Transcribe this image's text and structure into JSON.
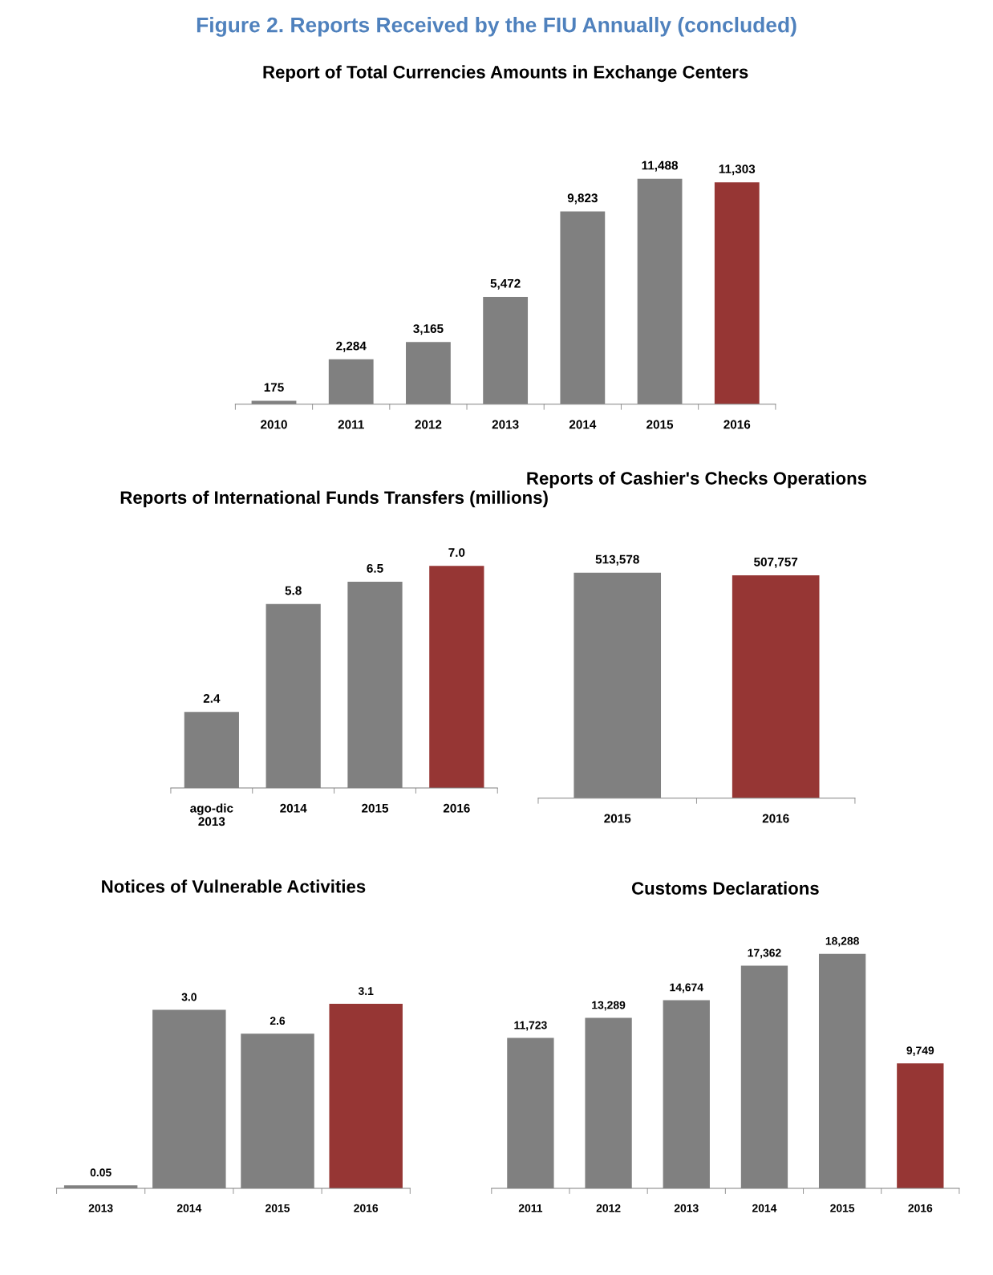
{
  "chart_data": [
    {
      "type": "bar",
      "title": "Figure 2. Reports Received by the FIU Annually (concluded)",
      "subtitle": "Report of Total Currencies Amounts in Exchange Centers",
      "categories": [
        "2010",
        "2011",
        "2012",
        "2013",
        "2014",
        "2015",
        "2016"
      ],
      "values": [
        175,
        2284,
        3165,
        5472,
        9823,
        11488,
        11303
      ],
      "value_labels": [
        "175",
        "2,284",
        "3,165",
        "5,472",
        "9,823",
        "11,488",
        "11,303"
      ],
      "colors": [
        "#808080",
        "#808080",
        "#808080",
        "#808080",
        "#808080",
        "#808080",
        "#963634"
      ],
      "grid": false,
      "legend": false
    },
    {
      "type": "bar",
      "title": "Reports of International Funds Transfers (millions)",
      "categories": [
        "ago-dic\n2013",
        "2014",
        "2015",
        "2016"
      ],
      "values": [
        2.4,
        5.8,
        6.5,
        7.0
      ],
      "value_labels": [
        "2.4",
        "5.8",
        "6.5",
        "7.0"
      ],
      "colors": [
        "#808080",
        "#808080",
        "#808080",
        "#963634"
      ],
      "grid": false,
      "legend": false
    },
    {
      "type": "bar",
      "title": "Reports of Cashier's Checks Operations",
      "categories": [
        "2015",
        "2016"
      ],
      "values": [
        513578,
        507757
      ],
      "value_labels": [
        "513,578",
        "507,757"
      ],
      "colors": [
        "#808080",
        "#963634"
      ],
      "grid": false,
      "legend": false
    },
    {
      "type": "bar",
      "title": "Notices of Vulnerable Activities",
      "categories": [
        "2013",
        "2014",
        "2015",
        "2016"
      ],
      "values": [
        0.05,
        3.0,
        2.6,
        3.1
      ],
      "value_labels": [
        "0.05",
        "3.0",
        "2.6",
        "3.1"
      ],
      "colors": [
        "#808080",
        "#808080",
        "#808080",
        "#963634"
      ],
      "grid": false,
      "legend": false
    },
    {
      "type": "bar",
      "title": "Customs Declarations",
      "categories": [
        "2011",
        "2012",
        "2013",
        "2014",
        "2015",
        "2016"
      ],
      "values": [
        11723,
        13289,
        14674,
        17362,
        18288,
        9749
      ],
      "value_labels": [
        "11,723",
        "13,289",
        "14,674",
        "17,362",
        "18,288",
        "9,749"
      ],
      "colors": [
        "#808080",
        "#808080",
        "#808080",
        "#808080",
        "#808080",
        "#963634"
      ],
      "grid": false,
      "legend": false
    }
  ]
}
